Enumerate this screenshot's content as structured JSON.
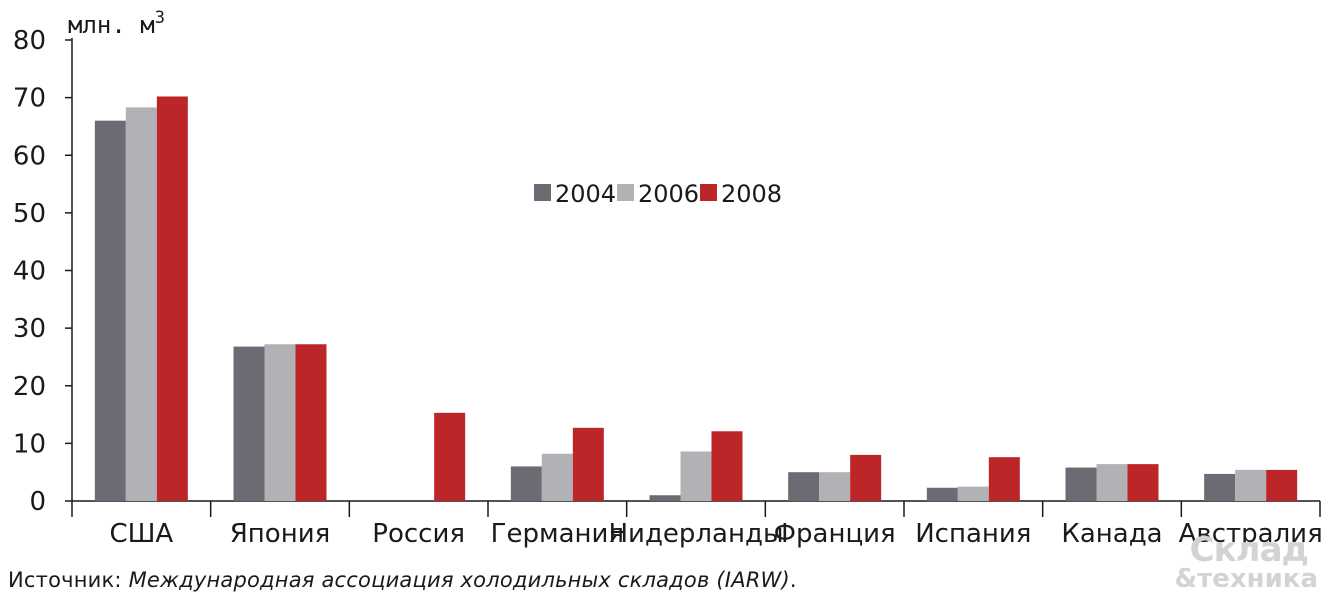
{
  "chart_data": {
    "type": "bar",
    "unit_label": "млн. м",
    "unit_sup": "3",
    "categories": [
      "США",
      "Япония",
      "Россия",
      "Германия",
      "Нидерланды",
      "Франция",
      "Испания",
      "Канада",
      "Австралия"
    ],
    "series": [
      {
        "name": "2004",
        "color": "#6b6c73",
        "values": [
          66,
          26.8,
          0,
          6,
          1,
          5,
          2.3,
          5.8,
          4.7
        ]
      },
      {
        "name": "2006",
        "color": "#b1b1b6",
        "values": [
          68.3,
          27.2,
          0,
          8.2,
          8.6,
          5,
          2.5,
          6.4,
          5.4
        ]
      },
      {
        "name": "2008",
        "color": "#bc2628",
        "values": [
          70.2,
          27.2,
          15.3,
          12.7,
          12.1,
          8,
          7.6,
          6.4,
          5.4
        ]
      }
    ],
    "ylim": [
      0,
      80
    ],
    "yticks": [
      0,
      10,
      20,
      30,
      40,
      50,
      60,
      70,
      80
    ],
    "legend_position": "center-top",
    "grid": false
  },
  "source": {
    "prefix": "Источник: ",
    "text": "Международная ассоциация холодильных складов (IARW)",
    "suffix": "."
  },
  "logo": {
    "line1": "Склад",
    "line2": "&техника"
  }
}
